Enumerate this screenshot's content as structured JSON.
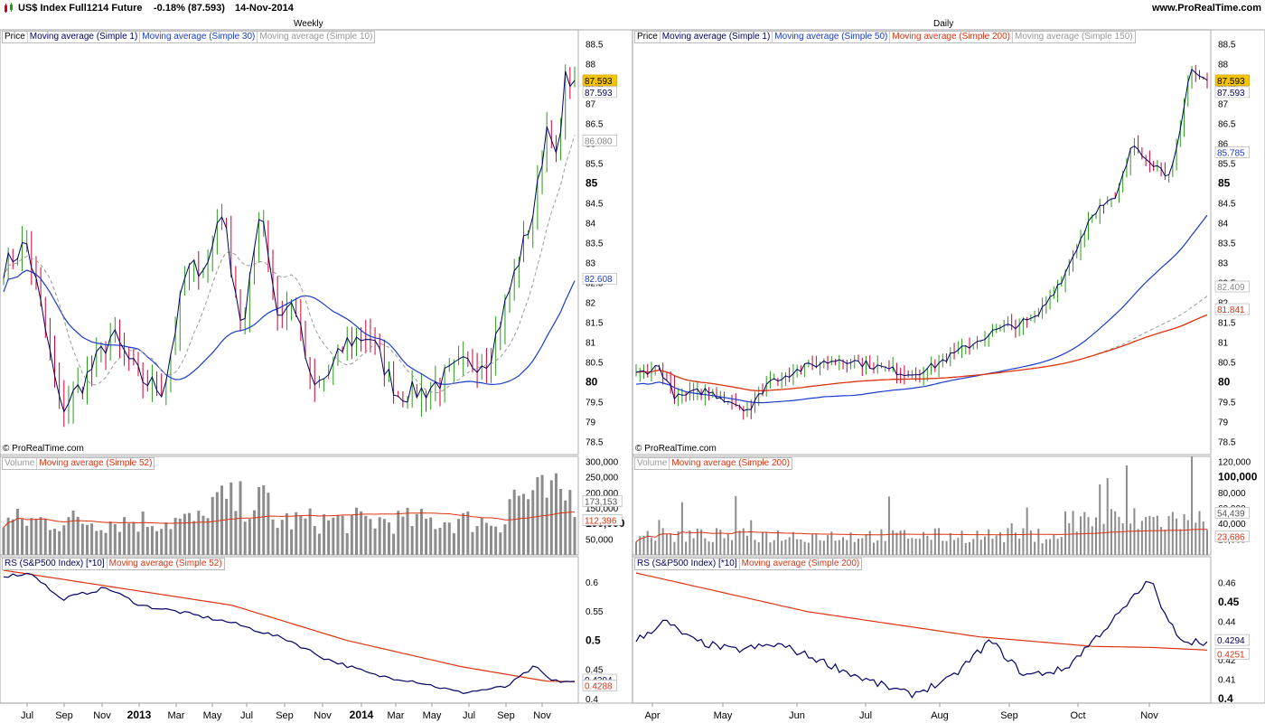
{
  "header": {
    "instrument": "US$ Index Full1214 Future",
    "change": "-0.18% (87.593)",
    "date": "14-Nov-2014",
    "site": "www.ProRealTime.com"
  },
  "copyright": "© ProRealTime.com",
  "colors": {
    "ma1": "#000066",
    "ma_blue": "#1a3ccc",
    "ma_grey": "#999999",
    "ma_red": "#dd3311",
    "up": "#2a9a1a",
    "down": "#cc0033",
    "volume": "#8c8c8c",
    "last_price_bg": "#f5c400"
  },
  "weekly": {
    "timeframe": "Weekly",
    "price_legend": [
      "Price",
      "Moving average (Simple 1)",
      "Moving average (Simple 30)",
      "Moving average (Simple 10)"
    ],
    "volume_legend": [
      "Volume",
      "Moving average (Simple 52)"
    ],
    "rs_legend": [
      "RS (S&P500 Index) [*10]",
      "Moving average (Simple 52)"
    ],
    "price_ticks": [
      "88.5",
      "88",
      "87.5",
      "87",
      "86.5",
      "86",
      "85.5",
      "85",
      "84.5",
      "84",
      "83.5",
      "83",
      "82.5",
      "82",
      "81.5",
      "81",
      "80.5",
      "80",
      "79.5",
      "79",
      "78.5"
    ],
    "price_tags": [
      {
        "text": "87.593",
        "color": "#000",
        "bg": "#f5c400"
      },
      {
        "text": "87.593",
        "color": "#000066",
        "bg": "#fff"
      },
      {
        "text": "86.080",
        "color": "#888",
        "bg": "#fff"
      },
      {
        "text": "82.608",
        "color": "#1a3ccc",
        "bg": "#fff"
      }
    ],
    "volume_ticks": [
      "300,000",
      "250,000",
      "200,000",
      "150,000",
      "100,000",
      "50,000"
    ],
    "volume_tags": [
      {
        "text": "173,153",
        "color": "#555",
        "bg": "#fff"
      },
      {
        "text": "112,396",
        "color": "#dd3311",
        "bg": "#fff"
      }
    ],
    "rs_ticks": [
      "0.6",
      "0.55",
      "0.5",
      "0.45",
      "0.4"
    ],
    "rs_tags": [
      {
        "text": "0.4294",
        "color": "#000066",
        "bg": "#fff"
      },
      {
        "text": "0.4288",
        "color": "#dd3311",
        "bg": "#fff"
      }
    ],
    "x_labels": [
      "Jul",
      "Sep",
      "Nov",
      "2013",
      "Mar",
      "May",
      "Jul",
      "Sep",
      "Nov",
      "2014",
      "Mar",
      "May",
      "Jul",
      "Sep",
      "Nov"
    ]
  },
  "daily": {
    "timeframe": "Daily",
    "price_legend": [
      "Price",
      "Moving average (Simple 1)",
      "Moving average (Simple 50)",
      "Moving average (Simple 200)",
      "Moving average (Simple 150)"
    ],
    "volume_legend": [
      "Volume",
      "Moving average (Simple 200)"
    ],
    "rs_legend": [
      "RS (S&P500 Index) [*10]",
      "Moving average (Simple 200)"
    ],
    "price_ticks": [
      "88.5",
      "88",
      "87.5",
      "87",
      "86.5",
      "86",
      "85.5",
      "85",
      "84.5",
      "84",
      "83.5",
      "83",
      "82.5",
      "82",
      "81.5",
      "81",
      "80.5",
      "80",
      "79.5",
      "79",
      "78.5"
    ],
    "price_tags": [
      {
        "text": "87.593",
        "color": "#000",
        "bg": "#f5c400"
      },
      {
        "text": "87.593",
        "color": "#000066",
        "bg": "#fff"
      },
      {
        "text": "85.785",
        "color": "#1a3ccc",
        "bg": "#fff"
      },
      {
        "text": "82.409",
        "color": "#888",
        "bg": "#fff"
      },
      {
        "text": "81.841",
        "color": "#dd3311",
        "bg": "#fff"
      }
    ],
    "volume_ticks": [
      "120,000",
      "100,000",
      "80,000",
      "60,000",
      "40,000",
      "20,000"
    ],
    "volume_tags": [
      {
        "text": "54,439",
        "color": "#555",
        "bg": "#fff"
      },
      {
        "text": "23,686",
        "color": "#dd3311",
        "bg": "#fff"
      }
    ],
    "rs_ticks": [
      "0.46",
      "0.45",
      "0.44",
      "0.43",
      "0.42",
      "0.41",
      "0.4"
    ],
    "rs_tags": [
      {
        "text": "0.4294",
        "color": "#000066",
        "bg": "#fff"
      },
      {
        "text": "0.4251",
        "color": "#dd3311",
        "bg": "#fff"
      }
    ],
    "x_labels": [
      "Apr",
      "May",
      "Jun",
      "Jul",
      "Aug",
      "Sep",
      "Oct",
      "Nov"
    ]
  },
  "chart_data": [
    {
      "type": "candlestick",
      "title": "US$ Index Full1214 Future - Weekly",
      "x_range": [
        "Jun 2012",
        "Nov 2014"
      ],
      "ylim": [
        78.5,
        88.5
      ],
      "close_points": [
        [
          "Jun 2012",
          82.9
        ],
        [
          "Jul 2012",
          83.5
        ],
        [
          "Sep 2012",
          79.3
        ],
        [
          "Nov 2012",
          80.8
        ],
        [
          "Jan 2013",
          79.9
        ],
        [
          "Mar 2013",
          82.9
        ],
        [
          "May 2013",
          84.5
        ],
        [
          "Jun 2013",
          81.2
        ],
        [
          "Jul 2013",
          84.6
        ],
        [
          "Aug 2013",
          81.7
        ],
        [
          "Sep 2013",
          82.0
        ],
        [
          "Oct 2013",
          79.8
        ],
        [
          "Nov 2013",
          80.8
        ],
        [
          "Jan 2014",
          81.0
        ],
        [
          "Mar 2014",
          79.7
        ],
        [
          "May 2014",
          79.8
        ],
        [
          "Jun 2014",
          80.5
        ],
        [
          "Jul 2014",
          80.6
        ],
        [
          "Aug 2014",
          82.2
        ],
        [
          "Sep 2014",
          84.4
        ],
        [
          "Oct 2014",
          86.8
        ],
        [
          "Oct 2014 (late)",
          85.2
        ],
        [
          "Nov 2014",
          87.593
        ]
      ],
      "moving_averages": {
        "Simple 30 last": 82.608,
        "Simple 10 last": 86.08
      },
      "volume_ylim": [
        0,
        300000
      ],
      "volume_last": 173153,
      "volume_ma52_last": 112396,
      "rs_ylim": [
        0.4,
        0.62
      ],
      "rs_last": 0.4294,
      "rs_ma52_last": 0.4288
    },
    {
      "type": "candlestick",
      "title": "US$ Index Full1214 Future - Daily",
      "x_range": [
        "Apr 2014",
        "Nov 2014"
      ],
      "ylim": [
        78.5,
        88.5
      ],
      "close_points": [
        [
          "Apr",
          80.2
        ],
        [
          "Apr (mid)",
          79.6
        ],
        [
          "May",
          79.8
        ],
        [
          "May (late)",
          79.5
        ],
        [
          "Jun",
          80.4
        ],
        [
          "Jun (mid)",
          80.6
        ],
        [
          "Jul",
          80.3
        ],
        [
          "Jul (mid)",
          80.1
        ],
        [
          "Aug",
          81.2
        ],
        [
          "Aug (mid)",
          81.5
        ],
        [
          "Sep",
          82.7
        ],
        [
          "Sep (mid)",
          84.4
        ],
        [
          "Oct",
          85.7
        ],
        [
          "Oct (mid)",
          86.0
        ],
        [
          "Oct (late)",
          85.2
        ],
        [
          "Nov",
          87.0
        ],
        [
          "Nov (mid)",
          87.593
        ]
      ],
      "moving_averages": {
        "Simple 50 last": 85.785,
        "Simple 150 last": 82.409,
        "Simple 200 last": 81.841
      },
      "volume_ylim": [
        0,
        120000
      ],
      "volume_last": 54439,
      "volume_ma200_last": 23686,
      "rs_ylim": [
        0.4,
        0.465
      ],
      "rs_last": 0.4294,
      "rs_ma200_last": 0.4251
    }
  ]
}
